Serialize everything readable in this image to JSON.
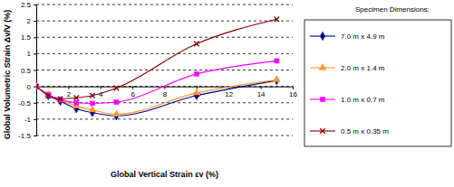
{
  "chart_data": {
    "type": "line",
    "x_label": "Global Vertical Strain εv (%)",
    "y_label": "Global Volumetric Strain  Δv/V (%)",
    "legend_title": "Specimen Dimensions:",
    "x": [
      0,
      0.75,
      1.5,
      2.5,
      3.5,
      5,
      10,
      15
    ],
    "xlim": [
      0,
      16
    ],
    "xticks": [
      2,
      4,
      6,
      8,
      10,
      12,
      14,
      16
    ],
    "ylim": [
      -1.5,
      2.5
    ],
    "yticks": [
      -1.5,
      -1,
      -0.5,
      0,
      0.5,
      1,
      1.5,
      2,
      2.5
    ],
    "grid": true,
    "legend": "right",
    "series": [
      {
        "name": "7.0 m x 4.9 m",
        "color": "#000080",
        "marker": "diamond",
        "values": [
          0,
          -0.28,
          -0.45,
          -0.68,
          -0.8,
          -0.9,
          -0.28,
          0.18
        ]
      },
      {
        "name": "2.0 m x 1.4 m",
        "color": "#ff9933",
        "marker": "triangle",
        "values": [
          0,
          -0.25,
          -0.42,
          -0.6,
          -0.72,
          -0.85,
          -0.2,
          0.2
        ]
      },
      {
        "name": "1.0 m x 0.7 m",
        "color": "#ff00ff",
        "marker": "square",
        "values": [
          0,
          -0.25,
          -0.4,
          -0.5,
          -0.52,
          -0.48,
          0.38,
          0.78
        ]
      },
      {
        "name": "0.5 m x 0.35 m",
        "color": "#800000",
        "marker": "x",
        "values": [
          0,
          -0.28,
          -0.38,
          -0.35,
          -0.28,
          -0.05,
          1.3,
          2.05
        ]
      }
    ]
  }
}
